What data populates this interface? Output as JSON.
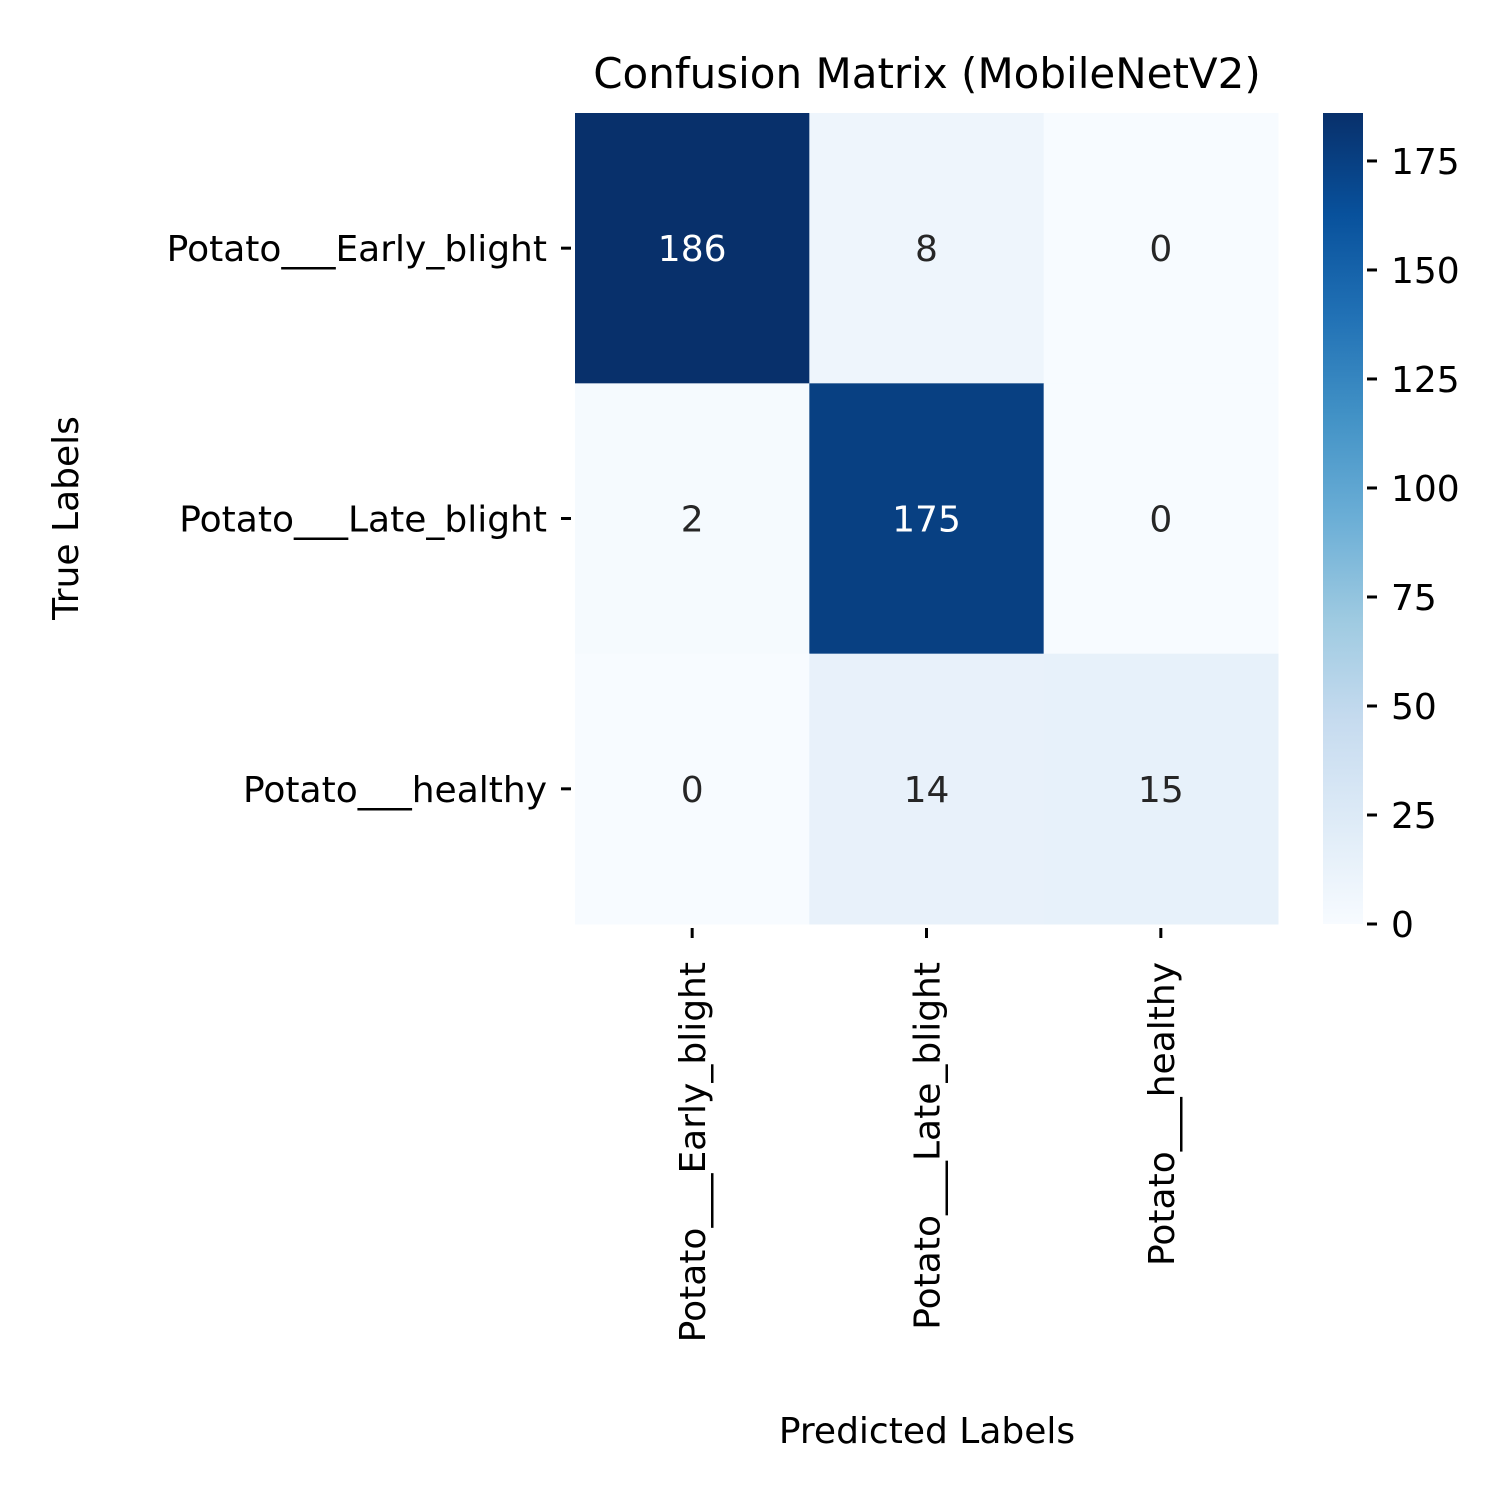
{
  "chart_data": {
    "type": "heatmap",
    "title": "Confusion Matrix (MobileNetV2)",
    "xlabel": "Predicted Labels",
    "ylabel": "True Labels",
    "row_labels": [
      "Potato___Early_blight",
      "Potato___Late_blight",
      "Potato___healthy"
    ],
    "col_labels": [
      "Potato___Early_blight",
      "Potato___Late_blight",
      "Potato___healthy"
    ],
    "values": [
      [
        186,
        8,
        0
      ],
      [
        2,
        175,
        0
      ],
      [
        0,
        14,
        15
      ]
    ],
    "colormap": "Blues",
    "color_stops": [
      "#f7fbff",
      "#deebf7",
      "#c6dbef",
      "#9ecae1",
      "#6baed6",
      "#4292c6",
      "#2171b5",
      "#08519c",
      "#08306b"
    ],
    "colorbar": {
      "range": [
        0,
        186
      ],
      "ticks": [
        0,
        25,
        50,
        75,
        100,
        125,
        150,
        175
      ]
    },
    "annotation_colors": {
      "dark": "#262626",
      "light": "#ffffff"
    }
  }
}
